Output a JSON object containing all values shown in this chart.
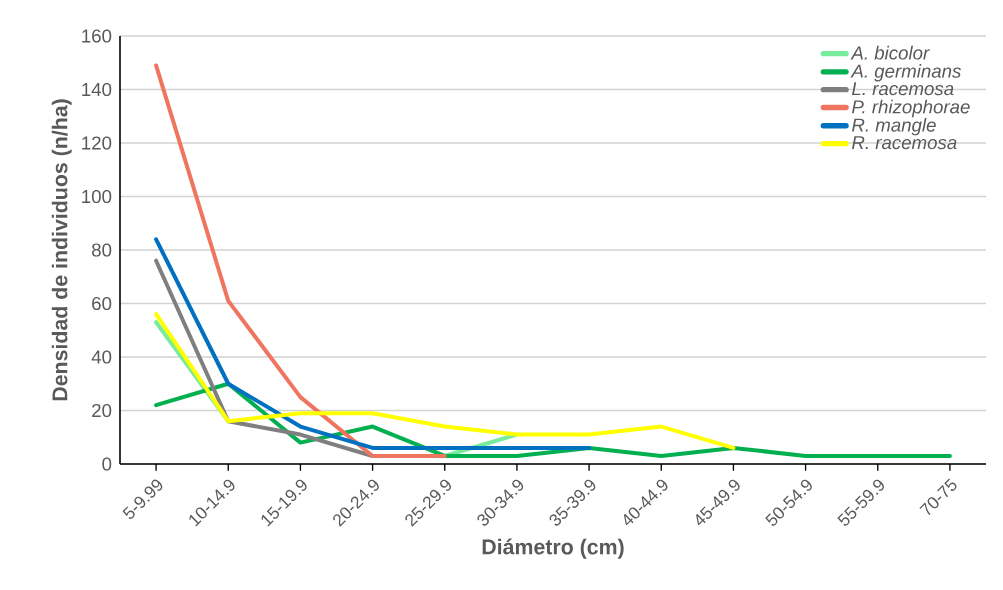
{
  "chart_data": {
    "type": "line",
    "xlabel": "Diámetro (cm)",
    "ylabel": "Densidad de individuos (n/ha)",
    "categories": [
      "5-9.99",
      "10-14.9",
      "15-19.9",
      "20-24.9",
      "25-29.9",
      "30-34.9",
      "35-39.9",
      "40-44.9",
      "45-49.9",
      "50-54.9",
      "55-59.9",
      "70-75"
    ],
    "ylim": [
      0,
      160
    ],
    "yticks": [
      0,
      20,
      40,
      60,
      80,
      100,
      120,
      140,
      160
    ],
    "grid": "y",
    "legend": "top right",
    "series": [
      {
        "name": "A. bicolor",
        "color": "#77ec9c",
        "values": [
          53,
          16,
          null,
          null,
          3,
          11,
          null,
          null,
          null,
          null,
          null,
          null
        ]
      },
      {
        "name": "A. germinans",
        "color": "#00b050",
        "values": [
          22,
          30,
          8,
          14,
          3,
          3,
          6,
          3,
          6,
          3,
          3,
          3
        ]
      },
      {
        "name": "L. racemosa",
        "color": "#7f7f7f",
        "values": [
          76,
          16,
          11,
          3,
          null,
          null,
          null,
          null,
          null,
          null,
          null,
          null
        ]
      },
      {
        "name": "P. rhizophorae",
        "color": "#ef7560",
        "values": [
          149,
          61,
          25,
          3,
          3,
          null,
          null,
          null,
          null,
          null,
          null,
          null
        ]
      },
      {
        "name": "R. mangle",
        "color": "#0070c0",
        "values": [
          84,
          30,
          14,
          6,
          6,
          6,
          6,
          null,
          null,
          null,
          null,
          null
        ]
      },
      {
        "name": "R. racemosa",
        "color": "#ffff00",
        "values": [
          56,
          16,
          19,
          19,
          14,
          11,
          11,
          14,
          6,
          null,
          null,
          null
        ]
      }
    ]
  }
}
